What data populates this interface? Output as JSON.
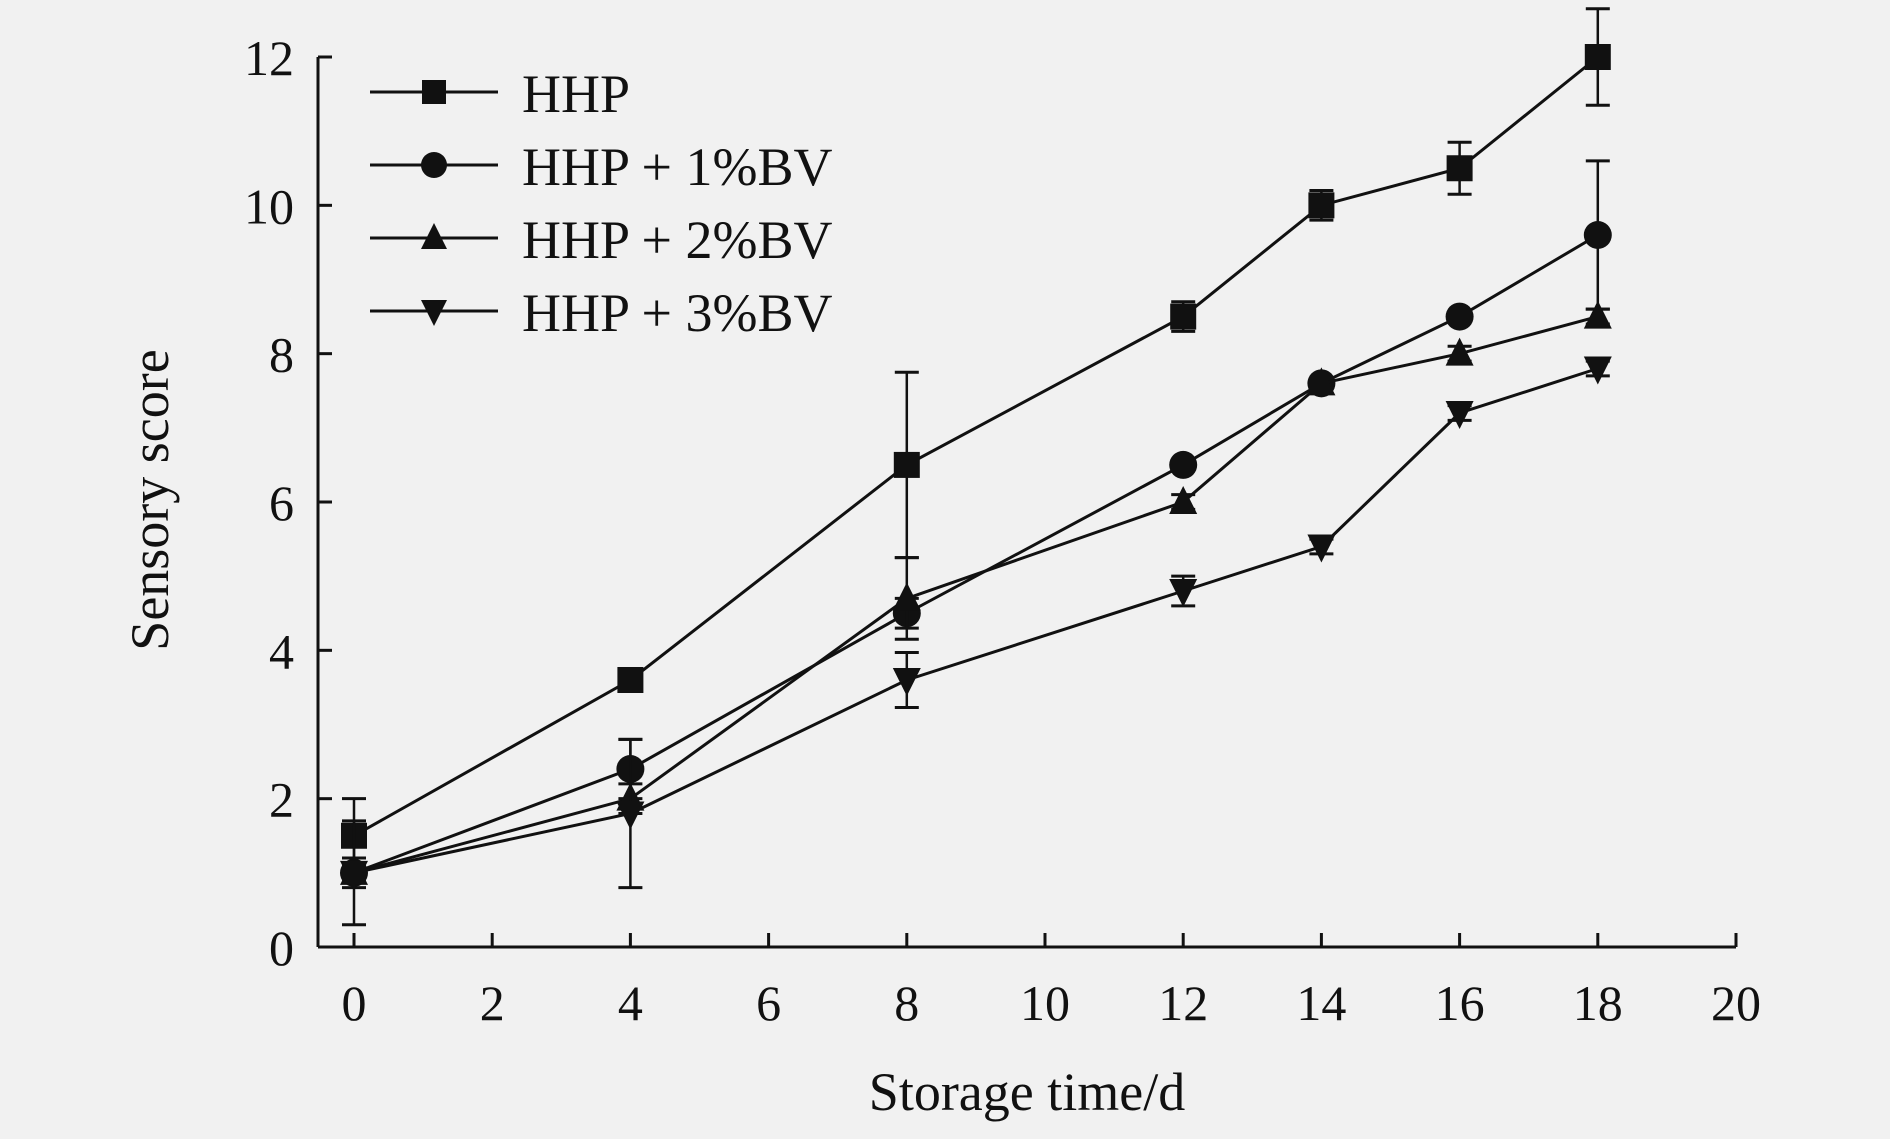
{
  "chart_data": {
    "type": "line",
    "xlabel": "Storage time/d",
    "ylabel": "Sensory score",
    "xlim": [
      0,
      20
    ],
    "ylim": [
      0,
      12
    ],
    "xticks": [
      "0",
      "2",
      "4",
      "6",
      "8",
      "10",
      "12",
      "14",
      "16",
      "18",
      "20"
    ],
    "yticks": [
      "0",
      "2",
      "4",
      "6",
      "8",
      "10",
      "12"
    ],
    "grid": false,
    "legend_position": "top-left",
    "x": [
      0,
      4,
      8,
      12,
      14,
      16,
      18
    ],
    "series": [
      {
        "name": "HHP",
        "marker": "square",
        "values": [
          1.5,
          3.6,
          6.5,
          8.5,
          10.0,
          10.5,
          12.0
        ],
        "errors": [
          0.5,
          0.05,
          1.25,
          0.2,
          0.2,
          0.35,
          0.65
        ]
      },
      {
        "name": "HHP + 1%BV",
        "marker": "circle",
        "values": [
          1.0,
          2.4,
          4.5,
          6.5,
          7.6,
          8.5,
          9.6
        ],
        "errors": [
          0.2,
          0.4,
          0.2,
          0.05,
          0.05,
          0.05,
          1.0
        ]
      },
      {
        "name": "HHP + 2%BV",
        "marker": "triangle-up",
        "values": [
          1.0,
          2.0,
          4.7,
          6.0,
          7.6,
          8.0,
          8.5
        ],
        "errors": [
          0.1,
          0.2,
          0.55,
          0.1,
          0.05,
          0.1,
          0.1
        ]
      },
      {
        "name": "HHP + 3%BV",
        "marker": "triangle-down",
        "values": [
          1.0,
          1.8,
          3.6,
          4.8,
          5.4,
          7.2,
          7.8
        ],
        "errors": [
          0.7,
          1.0,
          0.37,
          0.2,
          0.1,
          0.1,
          0.1
        ]
      }
    ],
    "colors": {
      "line": "#111111",
      "background": "#f1f1f1"
    }
  }
}
